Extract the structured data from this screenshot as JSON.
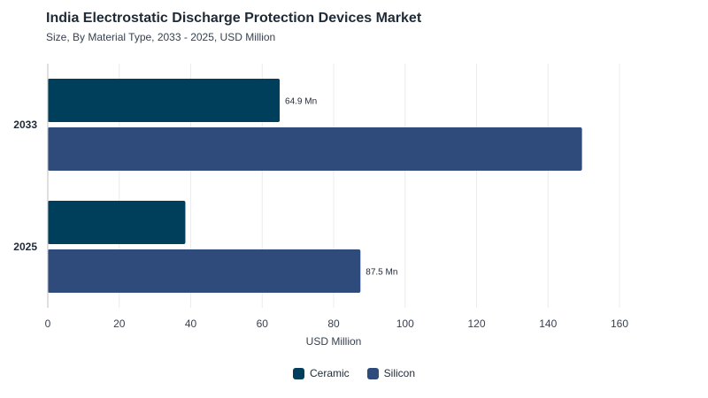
{
  "chart_data": {
    "type": "bar",
    "orientation": "horizontal",
    "title": "India Electrostatic Discharge Protection Devices Market",
    "subtitle": "Size, By Material Type, 2033 - 2025, USD Million",
    "xlabel": "USD Million",
    "ylabel": "",
    "categories": [
      "2033",
      "2025"
    ],
    "series": [
      {
        "name": "Ceramic",
        "color": "#003f5c",
        "values": [
          64.9,
          38.5
        ]
      },
      {
        "name": "Silicon",
        "color": "#2f4b7c",
        "values": [
          149.5,
          87.5
        ]
      }
    ],
    "data_labels": [
      {
        "category": "2033",
        "series": "Ceramic",
        "text": "64.9 Mn"
      },
      {
        "category": "2025",
        "series": "Silicon",
        "text": "87.5 Mn"
      }
    ],
    "xlim": [
      0,
      160
    ],
    "xticks": [
      0,
      20,
      40,
      60,
      80,
      100,
      120,
      140,
      160
    ],
    "grid": true,
    "legend_position": "bottom"
  }
}
